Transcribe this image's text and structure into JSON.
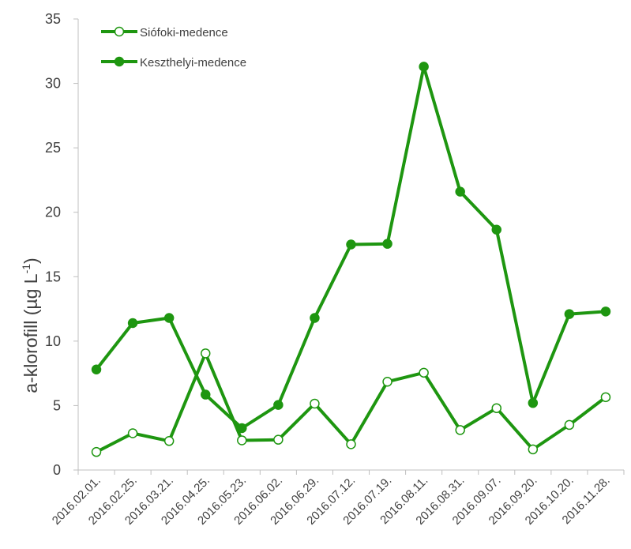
{
  "chart_data": {
    "type": "line",
    "title": "",
    "xlabel": "",
    "ylabel_main": "a-klorofill (µg L",
    "ylabel_sup": "-1",
    "ylabel_close": ")",
    "ylim": [
      0,
      35
    ],
    "yticks": [
      "0",
      "5",
      "10",
      "15",
      "20",
      "25",
      "30",
      "35"
    ],
    "grid": false,
    "legend_position": "top-left",
    "categories": [
      "2016.02.01.",
      "2016.02.25.",
      "2016.03.21.",
      "2016.04.25.",
      "2016.05.23.",
      "2016.06.02.",
      "2016.06.29.",
      "2016.07.12.",
      "2016.07.19.",
      "2016.08.11.",
      "2016.08.31.",
      "2016.09.07.",
      "2016.09.20.",
      "2016.10.20.",
      "2016.11.28."
    ],
    "series": [
      {
        "name": "Siófoki-medence",
        "marker": "open-circle",
        "color": "#1e9610",
        "values": [
          1.4,
          2.85,
          2.25,
          9.05,
          2.3,
          2.35,
          5.15,
          2.0,
          6.85,
          7.55,
          3.1,
          4.8,
          1.6,
          3.5,
          5.65
        ]
      },
      {
        "name": "Keszthelyi-medence",
        "marker": "filled-circle",
        "color": "#1e9610",
        "values": [
          7.8,
          11.4,
          11.8,
          5.85,
          3.25,
          5.05,
          11.8,
          17.5,
          17.55,
          31.3,
          21.6,
          18.65,
          5.2,
          12.1,
          12.3
        ]
      }
    ]
  }
}
